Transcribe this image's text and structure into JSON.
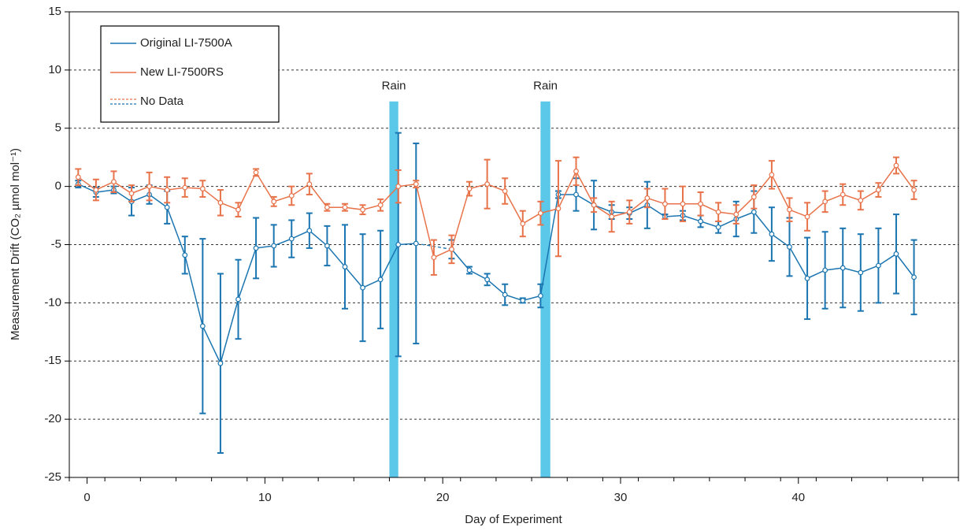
{
  "chart_data": {
    "type": "line",
    "x_label": "Day of Experiment",
    "y_label": "Measurement Drift (CO₂ µmol mol⁻¹)",
    "xlim": [
      -1,
      49
    ],
    "ylim": [
      -25,
      15
    ],
    "xticks": [
      0,
      10,
      20,
      30,
      40
    ],
    "x_minor_ticks": [
      -1,
      1,
      3,
      5,
      7,
      9,
      11,
      13,
      15,
      17,
      19,
      21,
      23,
      25,
      27,
      29,
      31,
      33,
      35,
      37,
      39,
      41,
      43,
      45,
      47,
      49
    ],
    "yticks": [
      -25,
      -20,
      -15,
      -10,
      -5,
      0,
      5,
      10,
      15
    ],
    "grid": true,
    "legend_position": "upper-left",
    "gap_label": "No Data",
    "x": [
      -0.5,
      0.5,
      1.5,
      2.5,
      3.5,
      4.5,
      5.5,
      6.5,
      7.5,
      8.5,
      9.5,
      10.5,
      11.5,
      12.5,
      13.5,
      14.5,
      15.5,
      16.5,
      17.5,
      18.5,
      19.5,
      20.5,
      21.5,
      22.5,
      23.5,
      24.5,
      25.5,
      26.5,
      27.5,
      28.5,
      29.5,
      30.5,
      31.5,
      32.5,
      33.5,
      34.5,
      35.5,
      36.5,
      37.5,
      38.5,
      39.5,
      40.5,
      41.5,
      42.5,
      43.5,
      44.5,
      45.5,
      46.5
    ],
    "bands": [
      {
        "label": "Rain",
        "x": [
          17,
          17.5
        ],
        "color": "#5bc8ea"
      },
      {
        "label": "Rain",
        "x": [
          25.5,
          26.05
        ],
        "color": "#5bc8ea"
      }
    ],
    "series": [
      {
        "name": "Original LI-7500A",
        "color": "#1a75b0",
        "values": [
          0.2,
          -0.5,
          -0.3,
          -1.3,
          -0.7,
          -1.8,
          -5.9,
          -12.0,
          -15.2,
          -9.7,
          -5.3,
          -5.1,
          -4.5,
          -3.8,
          -5.1,
          -6.9,
          -8.7,
          -8.0,
          -5.0,
          -4.9,
          null,
          -5.4,
          -7.2,
          -8.0,
          -9.3,
          -9.8,
          -9.4,
          -0.7,
          -0.7,
          -1.6,
          -2.2,
          -2.3,
          -1.6,
          -2.6,
          -2.5,
          -3.0,
          -3.5,
          -2.8,
          -2.2,
          -4.1,
          -5.2,
          -7.9,
          -7.2,
          -7.0,
          -7.4,
          -6.8,
          -5.8,
          -7.8
        ],
        "errors": [
          0.3,
          0.4,
          0.3,
          1.2,
          0.8,
          1.4,
          1.6,
          7.5,
          7.7,
          3.4,
          2.6,
          1.8,
          1.6,
          1.5,
          1.7,
          3.6,
          4.6,
          4.2,
          9.6,
          8.6,
          null,
          0.8,
          0.3,
          0.5,
          0.9,
          0.2,
          1.0,
          0.3,
          1.4,
          2.1,
          0.6,
          0.5,
          2.0,
          0.2,
          0.4,
          0.5,
          0.5,
          1.5,
          1.8,
          2.3,
          2.5,
          3.5,
          3.3,
          3.4,
          3.3,
          3.2,
          3.4,
          3.2
        ]
      },
      {
        "name": "New LI-7500RS",
        "color": "#e8734a",
        "values": [
          0.8,
          -0.3,
          0.4,
          -0.6,
          0.0,
          -0.3,
          -0.1,
          -0.2,
          -1.4,
          -2.0,
          1.2,
          -1.3,
          -0.8,
          0.2,
          -1.8,
          -1.8,
          -2.0,
          -1.6,
          0.0,
          0.2,
          -6.1,
          -5.4,
          -0.2,
          0.2,
          -0.4,
          -3.2,
          -2.3,
          -1.9,
          1.3,
          -1.6,
          -2.6,
          -2.2,
          -1.0,
          -1.5,
          -1.5,
          -1.5,
          -2.2,
          -2.4,
          -0.9,
          1.0,
          -2.0,
          -2.6,
          -1.3,
          -0.7,
          -1.2,
          -0.3,
          1.8,
          -0.3
        ],
        "errors": [
          0.7,
          0.9,
          0.9,
          0.7,
          1.2,
          1.1,
          0.8,
          0.7,
          1.1,
          0.6,
          0.3,
          0.4,
          0.8,
          0.9,
          0.3,
          0.3,
          0.4,
          0.5,
          1.4,
          0.3,
          1.5,
          1.2,
          0.6,
          2.1,
          1.1,
          1.1,
          1.0,
          4.1,
          1.2,
          0.6,
          1.3,
          1.0,
          0.8,
          1.3,
          1.5,
          1.0,
          0.8,
          0.8,
          1.0,
          1.2,
          1.0,
          1.2,
          0.9,
          0.9,
          0.8,
          0.6,
          0.7,
          0.8
        ]
      }
    ]
  }
}
